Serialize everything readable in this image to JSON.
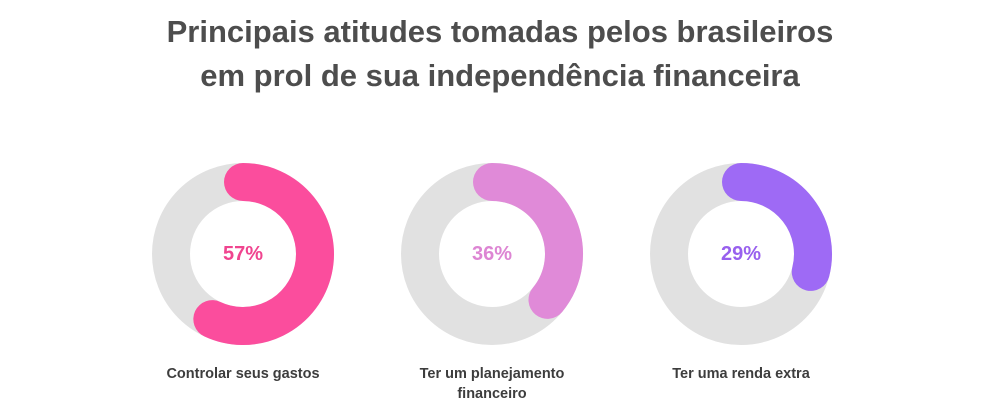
{
  "chart_data": {
    "type": "donut",
    "title_lines": [
      "Principais atitudes tomadas pelos brasileiros",
      "em prol de sua independência financeira"
    ],
    "unit": "%",
    "track_color": "#e1e1e1",
    "items": [
      {
        "label_lines": [
          "Controlar seus gastos"
        ],
        "value": 57,
        "value_label": "57%",
        "color": "#fb4d9d",
        "text_color": "#f0448f"
      },
      {
        "label_lines": [
          "Ter um planejamento",
          "financeiro"
        ],
        "value": 36,
        "value_label": "36%",
        "color": "#e08ad8",
        "text_color": "#dd85d3"
      },
      {
        "label_lines": [
          "Ter uma renda extra"
        ],
        "value": 29,
        "value_label": "29%",
        "color": "#9e6af5",
        "text_color": "#9860ee"
      }
    ]
  }
}
